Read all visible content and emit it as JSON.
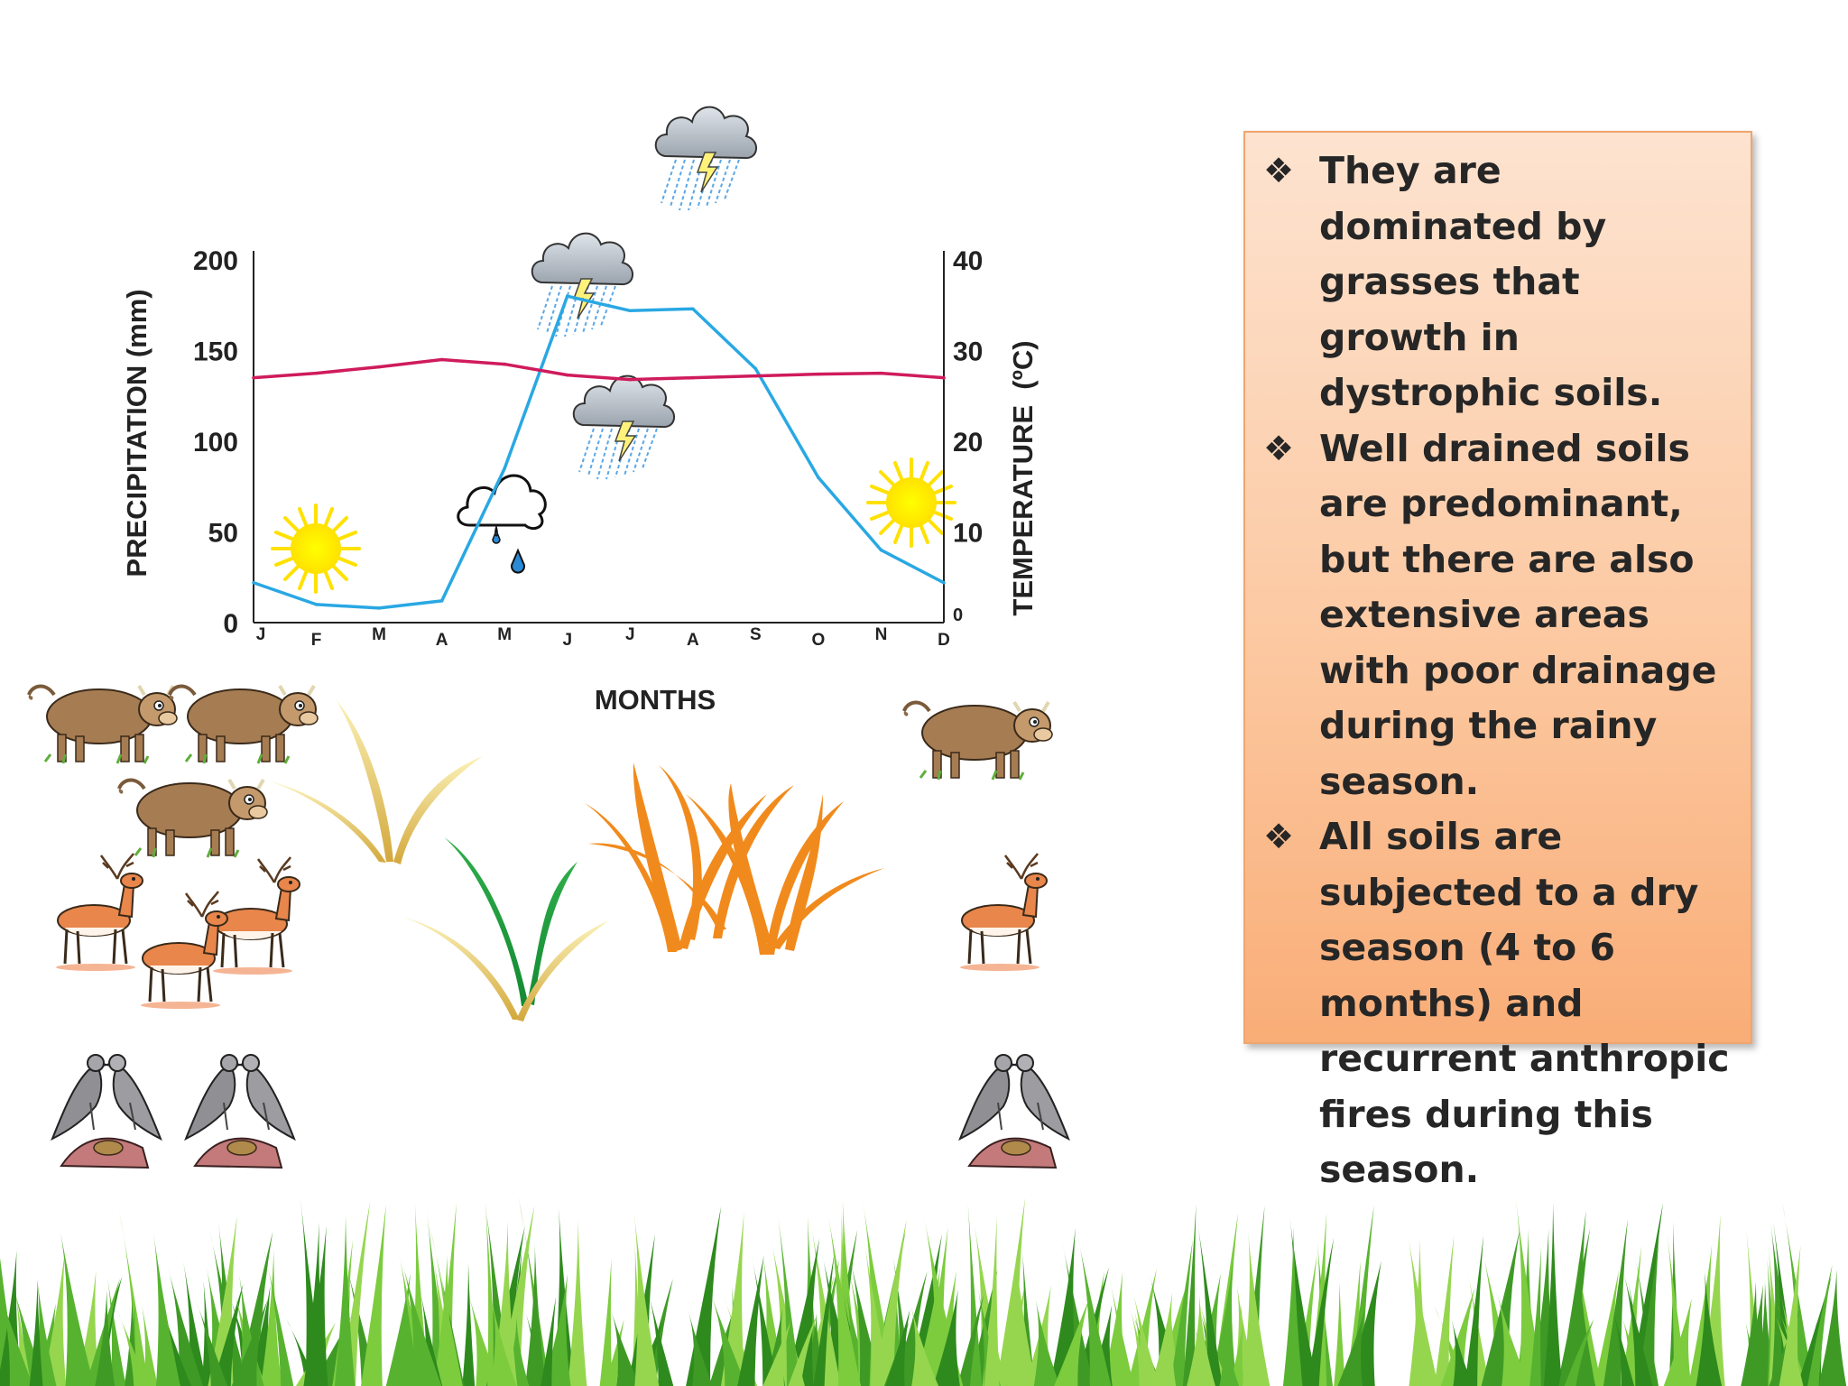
{
  "colors": {
    "precipitation_line": "#29a8e3",
    "temperature_line": "#cf1b5c",
    "box_top": "#fde3d0",
    "box_bottom": "#f9ad77",
    "grass": "#4aa52a",
    "text": "#262626"
  },
  "bullets": [
    {
      "icon": "four-diamond-bullet",
      "text": "They are dominated by grasses that growth in dystrophic soils."
    },
    {
      "icon": "four-diamond-bullet",
      "text": "Well drained soils are predominant, but there are also extensive areas with poor drainage during the rainy season."
    },
    {
      "icon": "four-diamond-bullet",
      "text": "All soils are subjected to a dry season (4 to 6 months) and recurrent anthropic fires during this season."
    }
  ],
  "bullet_glyph": "❖",
  "illustrations": [
    "sun-icon",
    "cloud-rain-drops-icon",
    "storm-cloud-icon",
    "cow-icon",
    "deer-icon",
    "dove-pair-icon",
    "grass-sprout-icon",
    "grass-strip"
  ],
  "chart_data": {
    "type": "line",
    "xlabel": "MONTHS",
    "ylabel_left": "PRECIPITATION (mm)",
    "ylabel_right": "TEMPERATURE  (ºC)",
    "categories": [
      "J",
      "F",
      "M",
      "A",
      "M",
      "J",
      "J",
      "A",
      "S",
      "O",
      "N",
      "D"
    ],
    "ylim_left": [
      0,
      200
    ],
    "ylim_right": [
      0,
      40
    ],
    "yticks_left": [
      "0",
      "50",
      "100",
      "150",
      "200"
    ],
    "yticks_right": [
      "0",
      "10",
      "20",
      "30",
      "40"
    ],
    "grid": false,
    "series": [
      {
        "axis": "left",
        "color": "#29a8e3",
        "values": [
          22,
          10,
          8,
          12,
          85,
          180,
          172,
          173,
          140,
          80,
          40,
          22
        ]
      },
      {
        "axis": "right",
        "color": "#cf1b5c",
        "values": [
          27,
          27.5,
          28.2,
          29,
          28.5,
          27.3,
          26.8,
          27,
          27.2,
          27.4,
          27.5,
          27
        ]
      }
    ]
  }
}
